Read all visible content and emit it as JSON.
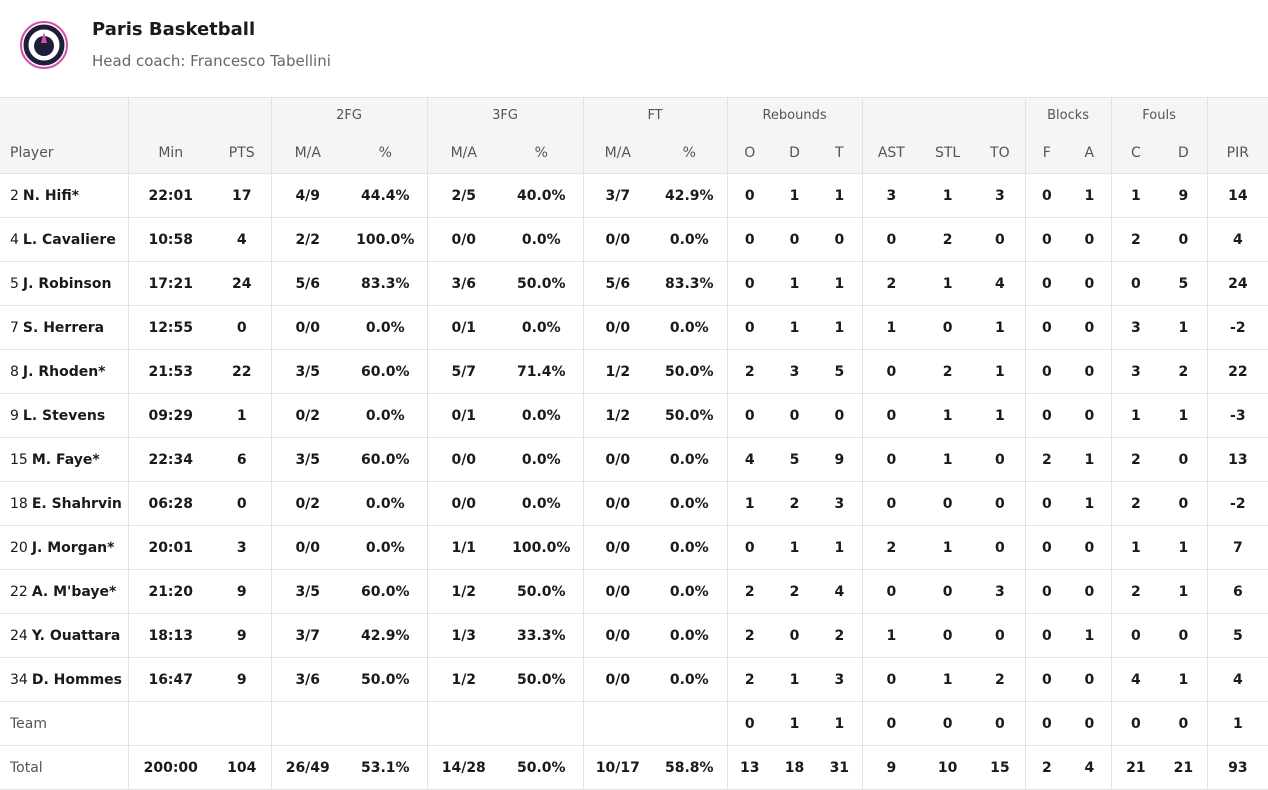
{
  "header": {
    "title": "Paris Basketball",
    "subtitle": "Head coach: Francesco Tabellini"
  },
  "table": {
    "group_headers": [
      null,
      null,
      "2FG",
      "3FG",
      "FT",
      "Rebounds",
      null,
      "Blocks",
      "Fouls",
      null
    ],
    "columns": [
      "Player",
      "Min",
      "PTS",
      "M/A",
      "%",
      "M/A",
      "%",
      "M/A",
      "%",
      "O",
      "D",
      "T",
      "AST",
      "STL",
      "TO",
      "F",
      "A",
      "C",
      "D",
      "PIR"
    ],
    "rows": [
      {
        "number": "2",
        "name": "N. Hifi*",
        "cells": [
          "22:01",
          "17",
          "4/9",
          "44.4%",
          "2/5",
          "40.0%",
          "3/7",
          "42.9%",
          "0",
          "1",
          "1",
          "3",
          "1",
          "3",
          "0",
          "1",
          "1",
          "9",
          "14"
        ]
      },
      {
        "number": "4",
        "name": "L. Cavaliere",
        "cells": [
          "10:58",
          "4",
          "2/2",
          "100.0%",
          "0/0",
          "0.0%",
          "0/0",
          "0.0%",
          "0",
          "0",
          "0",
          "0",
          "2",
          "0",
          "0",
          "0",
          "2",
          "0",
          "4"
        ]
      },
      {
        "number": "5",
        "name": "J. Robinson",
        "cells": [
          "17:21",
          "24",
          "5/6",
          "83.3%",
          "3/6",
          "50.0%",
          "5/6",
          "83.3%",
          "0",
          "1",
          "1",
          "2",
          "1",
          "4",
          "0",
          "0",
          "0",
          "5",
          "24"
        ]
      },
      {
        "number": "7",
        "name": "S. Herrera",
        "cells": [
          "12:55",
          "0",
          "0/0",
          "0.0%",
          "0/1",
          "0.0%",
          "0/0",
          "0.0%",
          "0",
          "1",
          "1",
          "1",
          "0",
          "1",
          "0",
          "0",
          "3",
          "1",
          "-2"
        ]
      },
      {
        "number": "8",
        "name": "J. Rhoden*",
        "cells": [
          "21:53",
          "22",
          "3/5",
          "60.0%",
          "5/7",
          "71.4%",
          "1/2",
          "50.0%",
          "2",
          "3",
          "5",
          "0",
          "2",
          "1",
          "0",
          "0",
          "3",
          "2",
          "22"
        ]
      },
      {
        "number": "9",
        "name": "L. Stevens",
        "cells": [
          "09:29",
          "1",
          "0/2",
          "0.0%",
          "0/1",
          "0.0%",
          "1/2",
          "50.0%",
          "0",
          "0",
          "0",
          "0",
          "1",
          "1",
          "0",
          "0",
          "1",
          "1",
          "-3"
        ]
      },
      {
        "number": "15",
        "name": "M. Faye*",
        "cells": [
          "22:34",
          "6",
          "3/5",
          "60.0%",
          "0/0",
          "0.0%",
          "0/0",
          "0.0%",
          "4",
          "5",
          "9",
          "0",
          "1",
          "0",
          "2",
          "1",
          "2",
          "0",
          "13"
        ]
      },
      {
        "number": "18",
        "name": "E. Shahrvin",
        "cells": [
          "06:28",
          "0",
          "0/2",
          "0.0%",
          "0/0",
          "0.0%",
          "0/0",
          "0.0%",
          "1",
          "2",
          "3",
          "0",
          "0",
          "0",
          "0",
          "1",
          "2",
          "0",
          "-2"
        ]
      },
      {
        "number": "20",
        "name": "J. Morgan*",
        "cells": [
          "20:01",
          "3",
          "0/0",
          "0.0%",
          "1/1",
          "100.0%",
          "0/0",
          "0.0%",
          "0",
          "1",
          "1",
          "2",
          "1",
          "0",
          "0",
          "0",
          "1",
          "1",
          "7"
        ]
      },
      {
        "number": "22",
        "name": "A. M'baye*",
        "cells": [
          "21:20",
          "9",
          "3/5",
          "60.0%",
          "1/2",
          "50.0%",
          "0/0",
          "0.0%",
          "2",
          "2",
          "4",
          "0",
          "0",
          "3",
          "0",
          "0",
          "2",
          "1",
          "6"
        ]
      },
      {
        "number": "24",
        "name": "Y. Ouattara",
        "cells": [
          "18:13",
          "9",
          "3/7",
          "42.9%",
          "1/3",
          "33.3%",
          "0/0",
          "0.0%",
          "2",
          "0",
          "2",
          "1",
          "0",
          "0",
          "0",
          "1",
          "0",
          "0",
          "5"
        ]
      },
      {
        "number": "34",
        "name": "D. Hommes",
        "cells": [
          "16:47",
          "9",
          "3/6",
          "50.0%",
          "1/2",
          "50.0%",
          "0/0",
          "0.0%",
          "2",
          "1",
          "3",
          "0",
          "1",
          "2",
          "0",
          "0",
          "4",
          "1",
          "4"
        ]
      },
      {
        "name": "Team",
        "cells": [
          null,
          null,
          null,
          null,
          null,
          null,
          null,
          null,
          "0",
          "1",
          "1",
          "0",
          "0",
          "0",
          "0",
          "0",
          "0",
          "0",
          "1"
        ]
      },
      {
        "name": "Total",
        "cells": [
          "200:00",
          "104",
          "26/49",
          "53.1%",
          "14/28",
          "50.0%",
          "10/17",
          "58.8%",
          "13",
          "18",
          "31",
          "9",
          "10",
          "15",
          "2",
          "4",
          "21",
          "21",
          "93"
        ]
      }
    ]
  }
}
